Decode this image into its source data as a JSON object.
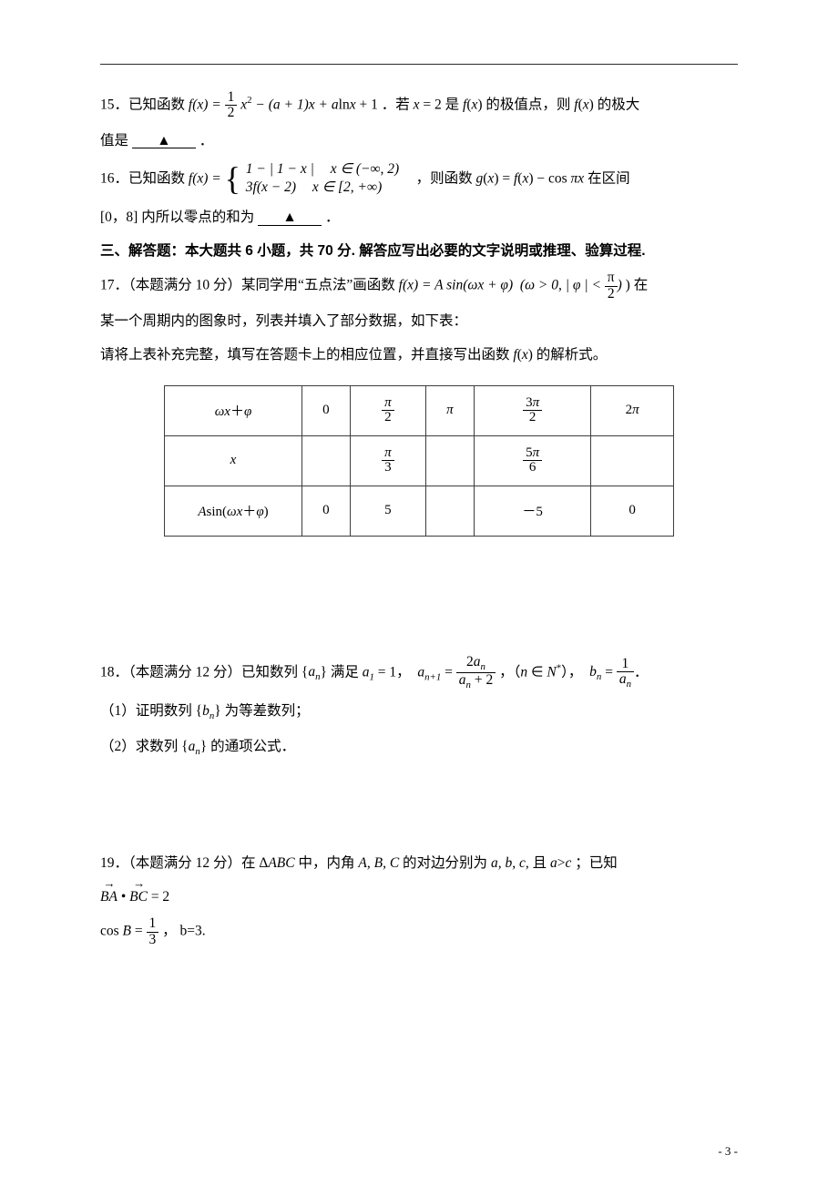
{
  "q15": {
    "prefix": "15．已知函数 ",
    "func": "f(x) = ",
    "frac1": {
      "num": "1",
      "den": "2"
    },
    "mid": "x² − (a+1)x + a",
    "ln": "ln",
    "after_ln": "x + 1",
    "cond": "．若 x = 2 是 f(x) 的极值点，则 f(x) 的极大",
    "line2": "值是",
    "blank": "▲",
    "end": "．"
  },
  "q16": {
    "prefix": "16．已知函数 ",
    "f_eq": "f(x) = ",
    "row1_expr": "1 − | 1 − x |",
    "row1_cond": "x ∈ (−∞, 2)",
    "row2_expr": "3 f(x − 2)",
    "row2_cond": "x ∈ [2, +∞)",
    "after": "，则函数 g(x) = f(x) − cos πx 在区间",
    "line2_a": "[0，8] 内所以零点的和为",
    "blank": "▲",
    "end": "．"
  },
  "section3": "三、解答题：本大题共 6 小题，共 70 分. 解答应写出必要的文字说明或推理、验算过程.",
  "q17": {
    "line1a": "17．（本题满分 10 分）某同学用“五点法”画函数 ",
    "func": "f(x) = A sin(ωx + φ)   (ω > 0, | φ | < ",
    "pi2": {
      "num": "π",
      "den": "2"
    },
    "line1b": ") 在",
    "line2": "某一个周期内的图象时，列表并填入了部分数据，如下表：",
    "line3": "请将上表补充完整，填写在答题卡上的相应位置，并直接写出函数 f(x) 的解析式。"
  },
  "table": {
    "r1": [
      "ωx＋φ",
      "0",
      "π/2",
      "π",
      "3π/2",
      "2π"
    ],
    "r2": [
      "x",
      "",
      "π/3",
      "",
      "5π/6",
      ""
    ],
    "r3": [
      "Asin(ωx＋φ)",
      "0",
      "5",
      "",
      "－5",
      "0"
    ]
  },
  "q18": {
    "line1a": "18．（本题满分 12 分）已知数列 {",
    "an": "aₙ",
    "line1b": "} 满足 a₁ = 1，  a",
    "sub_np1": "n+1",
    "eq": " = ",
    "frac": {
      "num": "2aₙ",
      "den": "aₙ + 2"
    },
    "line1c": "，（n ∈ N*），  bₙ = ",
    "frac2": {
      "num": "1",
      "den": "aₙ"
    },
    "end": "．",
    "part1": "（1）证明数列 {bₙ} 为等差数列；",
    "part2": "（2）求数列 {aₙ} 的通项公式．"
  },
  "q19": {
    "line1": "19．（本题满分 12 分）在 ΔABC 中，内角 A, B, C 的对边分别为 a, b, c, 且 a>c ；已知",
    "vec": "BA · BC = 2",
    "cos": "cos B = ",
    "frac": {
      "num": "1",
      "den": "3"
    },
    "tail": "， b=3."
  },
  "pagenum": "- 3 -"
}
